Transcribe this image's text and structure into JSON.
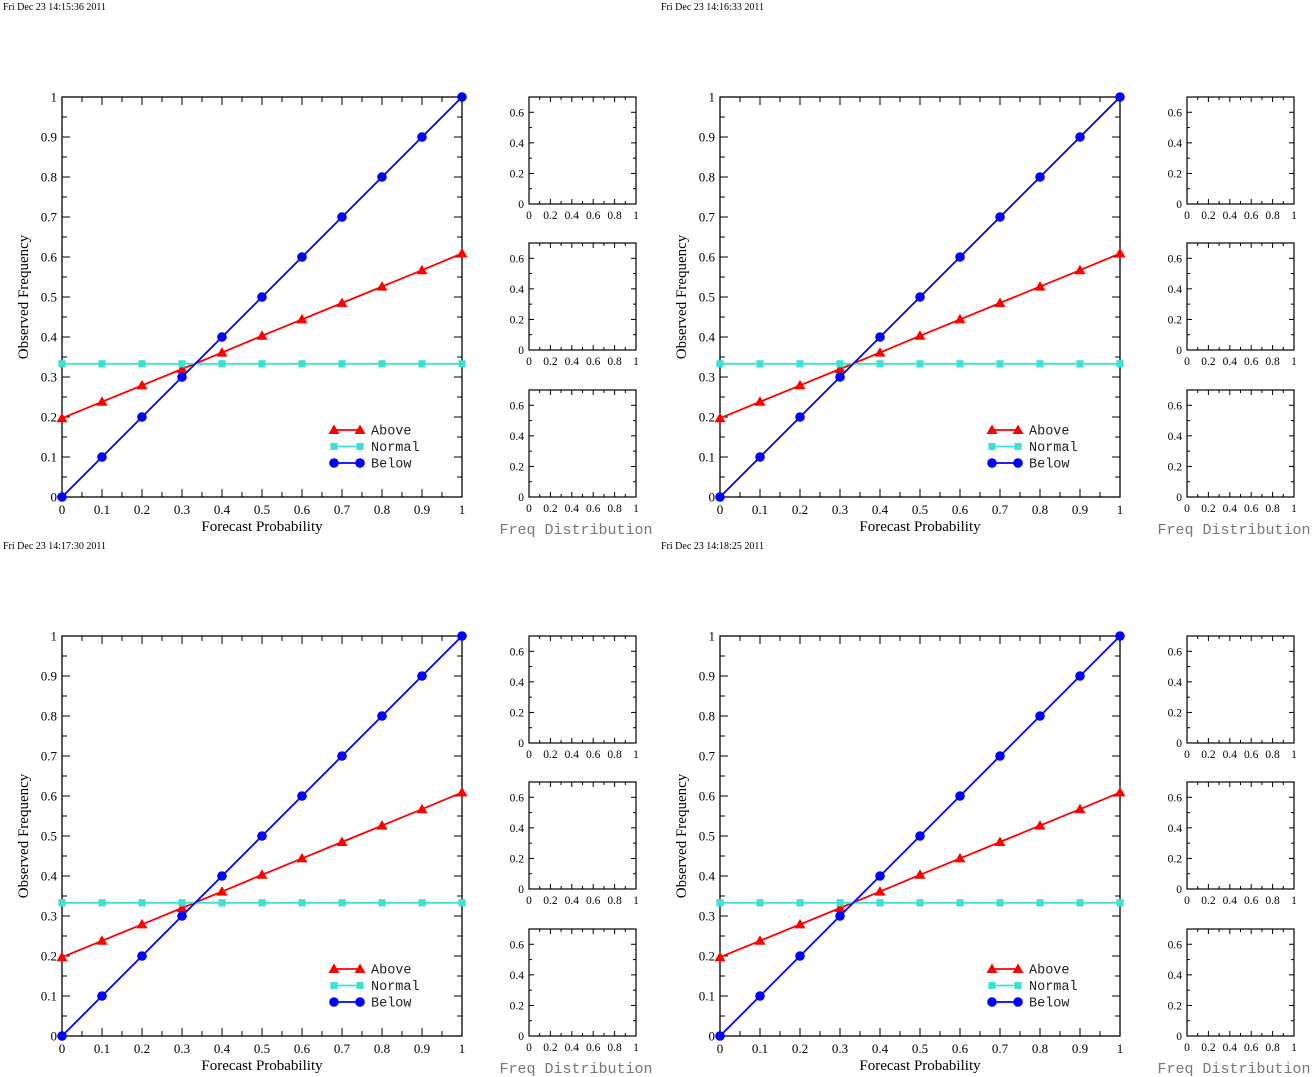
{
  "panels": [
    {
      "timestamp": "Fri Dec 23 14:15:36 2011"
    },
    {
      "timestamp": "Fri Dec 23 14:16:33 2011"
    },
    {
      "timestamp": "Fri Dec 23 14:17:30 2011"
    },
    {
      "timestamp": "Fri Dec 23 14:18:25 2011"
    }
  ],
  "chart_data": {
    "type": "line",
    "xlabel": "Forecast Probability",
    "ylabel": "Observed Frequency",
    "xlim": [
      0,
      1
    ],
    "ylim": [
      0,
      1
    ],
    "x": [
      0,
      0.1,
      0.2,
      0.3,
      0.4,
      0.5,
      0.6,
      0.7,
      0.8,
      0.9,
      1
    ],
    "xticks": [
      "0",
      "0.1",
      "0.2",
      "0.3",
      "0.4",
      "0.5",
      "0.6",
      "0.7",
      "0.8",
      "0.9",
      "1"
    ],
    "yticks": [
      "0",
      "0.1",
      "0.2",
      "0.3",
      "0.4",
      "0.5",
      "0.6",
      "0.7",
      "0.8",
      "0.9",
      "1"
    ],
    "legend_position": "bottom-right",
    "series": [
      {
        "name": "Above",
        "color": "#ff0000",
        "marker": "triangle",
        "values": [
          0.197,
          0.238,
          0.279,
          0.32,
          0.361,
          0.403,
          0.444,
          0.485,
          0.526,
          0.567,
          0.609
        ]
      },
      {
        "name": "Normal",
        "color": "#40e0d0",
        "marker": "square",
        "values": [
          0.333,
          0.333,
          0.333,
          0.333,
          0.333,
          0.333,
          0.333,
          0.333,
          0.333,
          0.333,
          0.333
        ]
      },
      {
        "name": "Below",
        "color": "#0000ff",
        "marker": "circle",
        "values": [
          0,
          0.1,
          0.2,
          0.3,
          0.4,
          0.5,
          0.6,
          0.7,
          0.8,
          0.9,
          1
        ]
      }
    ],
    "freq_distribution": {
      "label": "Freq Distribution",
      "xlim": [
        0,
        1
      ],
      "ylim": [
        0,
        0.7
      ],
      "xticks": [
        "0",
        "0.2",
        "0.4",
        "0.6",
        "0.8",
        "1"
      ],
      "yticks": [
        "0",
        "0.2",
        "0.4",
        "0.6"
      ],
      "subplots": 3
    }
  }
}
